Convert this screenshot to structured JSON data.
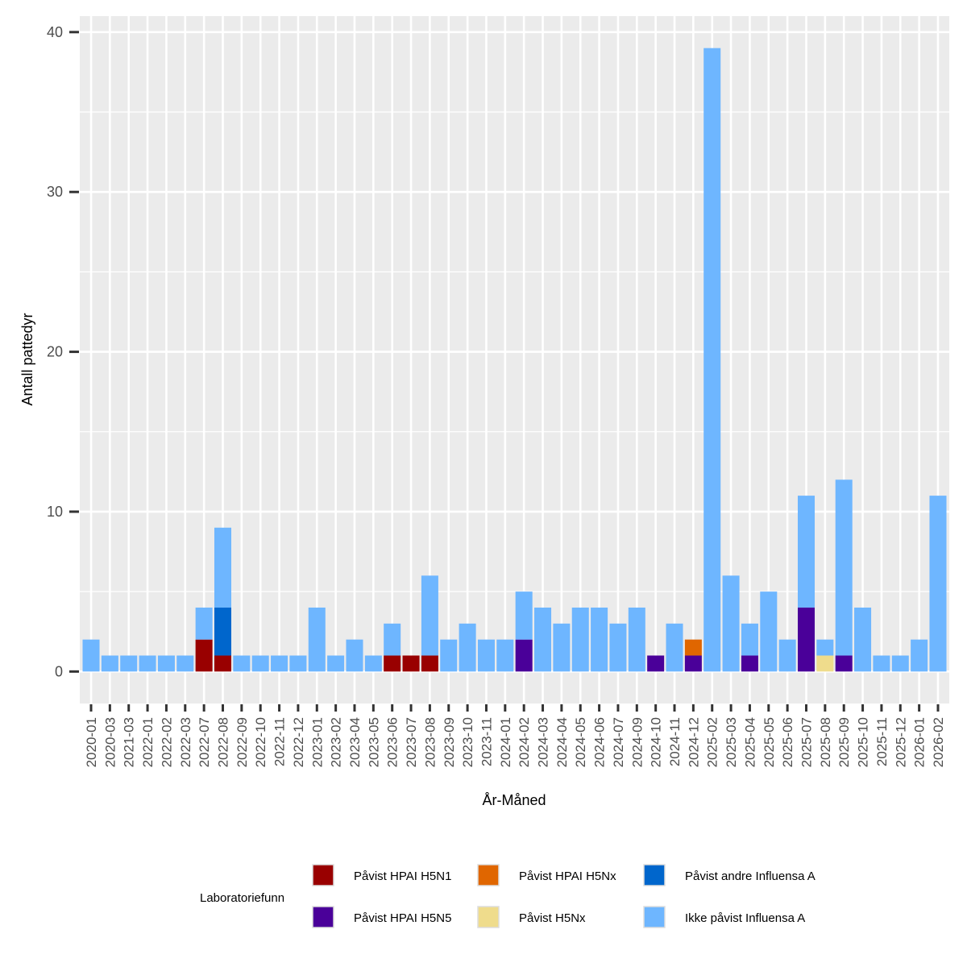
{
  "chart_data": {
    "type": "bar",
    "stacked": true,
    "xlabel": "År-Måned",
    "ylabel": "Antall pattedyr",
    "ylim": [
      -2,
      41
    ],
    "yticks": [
      0,
      10,
      20,
      30,
      40
    ],
    "categories": [
      "2020-01",
      "2020-03",
      "2021-03",
      "2022-01",
      "2022-02",
      "2022-03",
      "2022-07",
      "2022-08",
      "2022-09",
      "2022-10",
      "2022-11",
      "2022-12",
      "2023-01",
      "2023-02",
      "2023-04",
      "2023-05",
      "2023-06",
      "2023-07",
      "2023-08",
      "2023-09",
      "2023-10",
      "2023-11",
      "2024-01",
      "2024-02",
      "2024-03",
      "2024-04",
      "2024-05",
      "2024-06",
      "2024-07",
      "2024-09",
      "2024-10",
      "2024-11",
      "2024-12",
      "2025-02",
      "2025-03",
      "2025-04",
      "2025-05",
      "2025-06",
      "2025-07",
      "2025-08",
      "2025-09",
      "2025-10",
      "2025-11",
      "2025-12",
      "2026-01",
      "2026-02"
    ],
    "series": [
      {
        "name": "Påvist HPAI H5N1",
        "color": "#990000",
        "values": [
          0,
          0,
          0,
          0,
          0,
          0,
          2,
          1,
          0,
          0,
          0,
          0,
          0,
          0,
          0,
          0,
          1,
          1,
          1,
          0,
          0,
          0,
          0,
          0,
          0,
          0,
          0,
          0,
          0,
          0,
          0,
          0,
          0,
          0,
          0,
          0,
          0,
          0,
          0,
          0,
          0,
          0,
          0,
          0,
          0,
          0
        ]
      },
      {
        "name": "Påvist HPAI H5N5",
        "color": "#4a0099",
        "values": [
          0,
          0,
          0,
          0,
          0,
          0,
          0,
          0,
          0,
          0,
          0,
          0,
          0,
          0,
          0,
          0,
          0,
          0,
          0,
          0,
          0,
          0,
          0,
          2,
          0,
          0,
          0,
          0,
          0,
          0,
          1,
          0,
          1,
          0,
          0,
          1,
          0,
          0,
          4,
          0,
          1,
          0,
          0,
          0,
          0,
          0
        ]
      },
      {
        "name": "Påvist HPAI H5Nx",
        "color": "#e06600",
        "values": [
          0,
          0,
          0,
          0,
          0,
          0,
          0,
          0,
          0,
          0,
          0,
          0,
          0,
          0,
          0,
          0,
          0,
          0,
          0,
          0,
          0,
          0,
          0,
          0,
          0,
          0,
          0,
          0,
          0,
          0,
          0,
          0,
          1,
          0,
          0,
          0,
          0,
          0,
          0,
          0,
          0,
          0,
          0,
          0,
          0,
          0
        ]
      },
      {
        "name": "Påvist H5Nx",
        "color": "#efdc8c",
        "values": [
          0,
          0,
          0,
          0,
          0,
          0,
          0,
          0,
          0,
          0,
          0,
          0,
          0,
          0,
          0,
          0,
          0,
          0,
          0,
          0,
          0,
          0,
          0,
          0,
          0,
          0,
          0,
          0,
          0,
          0,
          0,
          0,
          0,
          0,
          0,
          0,
          0,
          0,
          0,
          1,
          0,
          0,
          0,
          0,
          0,
          0
        ]
      },
      {
        "name": "Påvist andre Influensa A",
        "color": "#0066cc",
        "values": [
          0,
          0,
          0,
          0,
          0,
          0,
          0,
          3,
          0,
          0,
          0,
          0,
          0,
          0,
          0,
          0,
          0,
          0,
          0,
          0,
          0,
          0,
          0,
          0,
          0,
          0,
          0,
          0,
          0,
          0,
          0,
          0,
          0,
          0,
          0,
          0,
          0,
          0,
          0,
          0,
          0,
          0,
          0,
          0,
          0,
          0
        ]
      },
      {
        "name": "Ikke påvist Influensa A",
        "color": "#6eb6ff",
        "values": [
          2,
          1,
          1,
          1,
          1,
          1,
          2,
          5,
          1,
          1,
          1,
          1,
          4,
          1,
          2,
          1,
          2,
          0,
          5,
          2,
          3,
          2,
          2,
          3,
          4,
          3,
          4,
          4,
          3,
          4,
          0,
          3,
          0,
          39,
          6,
          2,
          5,
          2,
          7,
          1,
          11,
          4,
          1,
          1,
          2,
          11
        ]
      }
    ],
    "stack_order_bottom_to_top": [
      "Påvist HPAI H5N1",
      "Påvist HPAI H5N5",
      "Påvist HPAI H5Nx",
      "Påvist H5Nx",
      "Påvist andre Influensa A",
      "Ikke påvist Influensa A"
    ],
    "legend": {
      "title": "Laboratoriefunn",
      "position": "bottom",
      "rows": [
        [
          "Påvist HPAI H5N1",
          "Påvist HPAI H5Nx",
          "Påvist andre Influensa A"
        ],
        [
          "Påvist HPAI H5N5",
          "Påvist H5Nx",
          "Ikke påvist Influensa A"
        ]
      ]
    },
    "panel_background": "#ebebeb",
    "grid": true
  }
}
